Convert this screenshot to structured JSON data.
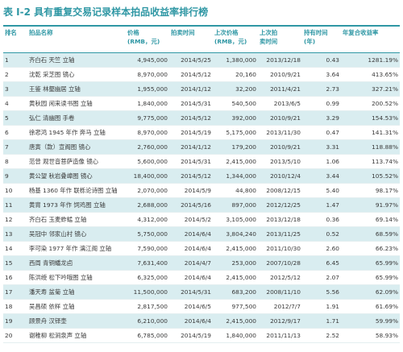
{
  "title": "表 I-2 具有重复交易记录样本拍品收益率排行榜",
  "headers": {
    "rank": "排名",
    "name": "拍品名称",
    "price_l1": "价格",
    "price_l2": "(RMB，元)",
    "date": "拍卖时间",
    "prev_price_l1": "上次价格",
    "prev_price_l2": "(RMB，元)",
    "prev_date_l1": "上次拍",
    "prev_date_l2": "卖时间",
    "hold_l1": "持有时间",
    "hold_l2": "(年)",
    "cagr": "年复合收益率"
  },
  "rows": [
    {
      "rank": "1",
      "name": "齐白石 天竺 立轴",
      "price": "4,945,000",
      "date": "2014/5/25",
      "prev_price": "1,380,000",
      "prev_date": "2013/12/18",
      "hold": "0.43",
      "cagr": "1281.19%"
    },
    {
      "rank": "2",
      "name": "沈乾 采芝图 镜心",
      "price": "8,970,000",
      "date": "2014/5/12",
      "prev_price": "20,160",
      "prev_date": "2010/9/21",
      "hold": "3.64",
      "cagr": "413.65%"
    },
    {
      "rank": "3",
      "name": "王鉴 林壑幽居 立轴",
      "price": "1,955,000",
      "date": "2014/1/12",
      "prev_price": "32,200",
      "prev_date": "2011/4/21",
      "hold": "2.73",
      "cagr": "327.21%"
    },
    {
      "rank": "4",
      "name": "黄秋园 闲来读书图 立轴",
      "price": "1,840,000",
      "date": "2014/5/31",
      "prev_price": "540,500",
      "prev_date": "2013/6/5",
      "hold": "0.99",
      "cagr": "200.52%"
    },
    {
      "rank": "5",
      "name": "弘仁 清幽图 手卷",
      "price": "9,775,000",
      "date": "2014/5/12",
      "prev_price": "392,000",
      "prev_date": "2010/9/21",
      "hold": "3.29",
      "cagr": "154.53%"
    },
    {
      "rank": "6",
      "name": "徐悲鸿 1945 年作 奔马 立轴",
      "price": "8,970,000",
      "date": "2014/5/19",
      "prev_price": "5,175,000",
      "prev_date": "2013/11/30",
      "hold": "0.47",
      "cagr": "141.31%"
    },
    {
      "rank": "7",
      "name": "唐寅（款）宣阁图 镜心",
      "price": "2,760,000",
      "date": "2014/1/12",
      "prev_price": "179,200",
      "prev_date": "2010/9/21",
      "hold": "3.31",
      "cagr": "118.88%"
    },
    {
      "rank": "8",
      "name": "范曾 观世音菩萨造像 镜心",
      "price": "5,600,000",
      "date": "2014/5/31",
      "prev_price": "2,415,000",
      "prev_date": "2013/5/10",
      "hold": "1.06",
      "cagr": "113.74%"
    },
    {
      "rank": "9",
      "name": "黄公望 秋岩叠嶂图 镜心",
      "price": "18,400,000",
      "date": "2014/5/12",
      "prev_price": "1,344,000",
      "prev_date": "2010/12/4",
      "hold": "3.44",
      "cagr": "105.52%"
    },
    {
      "rank": "10",
      "name": "杨基 1360 年作 联栎论诗图 立轴",
      "price": "2,070,000",
      "date": "2014/5/9",
      "prev_price": "44,800",
      "prev_date": "2008/12/15",
      "hold": "5.40",
      "cagr": "98.17%"
    },
    {
      "rank": "11",
      "name": "黄胄 1973 年作 饲鸡图 立轴",
      "price": "2,688,000",
      "date": "2014/5/16",
      "prev_price": "897,000",
      "prev_date": "2012/12/25",
      "hold": "1.47",
      "cagr": "91.97%"
    },
    {
      "rank": "12",
      "name": "齐白石 玉麦蚱蜢 立轴",
      "price": "4,312,000",
      "date": "2014/5/2",
      "prev_price": "3,105,000",
      "prev_date": "2013/12/18",
      "hold": "0.36",
      "cagr": "69.14%"
    },
    {
      "rank": "13",
      "name": "吴冠中 邻家山村 镜心",
      "price": "5,750,000",
      "date": "2014/6/4",
      "prev_price": "3,804,240",
      "prev_date": "2013/11/25",
      "hold": "0.52",
      "cagr": "68.59%"
    },
    {
      "rank": "14",
      "name": "李可染 1977 年作 漓江阁 立轴",
      "price": "7,590,000",
      "date": "2014/6/4",
      "prev_price": "2,415,000",
      "prev_date": "2011/10/30",
      "hold": "2.60",
      "cagr": "66.23%"
    },
    {
      "rank": "15",
      "name": "西周 青铜蟠龙卣",
      "price": "7,631,400",
      "date": "2014/4/7",
      "prev_price": "253,000",
      "prev_date": "2007/10/28",
      "hold": "6.45",
      "cagr": "65.99%"
    },
    {
      "rank": "16",
      "name": "陈洪绶 松下吟哦图 立轴",
      "price": "6,325,000",
      "date": "2014/6/4",
      "prev_price": "2,415,000",
      "prev_date": "2012/5/12",
      "hold": "2.07",
      "cagr": "65.99%"
    },
    {
      "rank": "17",
      "name": "潘天寿 盆菊 立轴",
      "price": "11,500,000",
      "date": "2014/5/31",
      "prev_price": "683,200",
      "prev_date": "2008/11/10",
      "hold": "5.56",
      "cagr": "62.09%"
    },
    {
      "rank": "18",
      "name": "吴昌硕 依样 立轴",
      "price": "2,817,500",
      "date": "2014/6/5",
      "prev_price": "977,500",
      "prev_date": "2012/7/7",
      "hold": "1.91",
      "cagr": "61.69%"
    },
    {
      "rank": "19",
      "name": "顾景舟 汉铎壶",
      "price": "6,210,000",
      "date": "2014/6/4",
      "prev_price": "2,415,000",
      "prev_date": "2012/9/17",
      "hold": "1.71",
      "cagr": "59.99%"
    },
    {
      "rank": "20",
      "name": "谢稚柳 松涧泉声 立轴",
      "price": "6,785,000",
      "date": "2014/5/19",
      "prev_price": "1,840,000",
      "prev_date": "2011/11/13",
      "hold": "2.52",
      "cagr": "58.93%"
    }
  ],
  "colors": {
    "accent": "#2f97a4",
    "row_stripe": "#d9edf0",
    "row_plain": "#ffffff"
  }
}
